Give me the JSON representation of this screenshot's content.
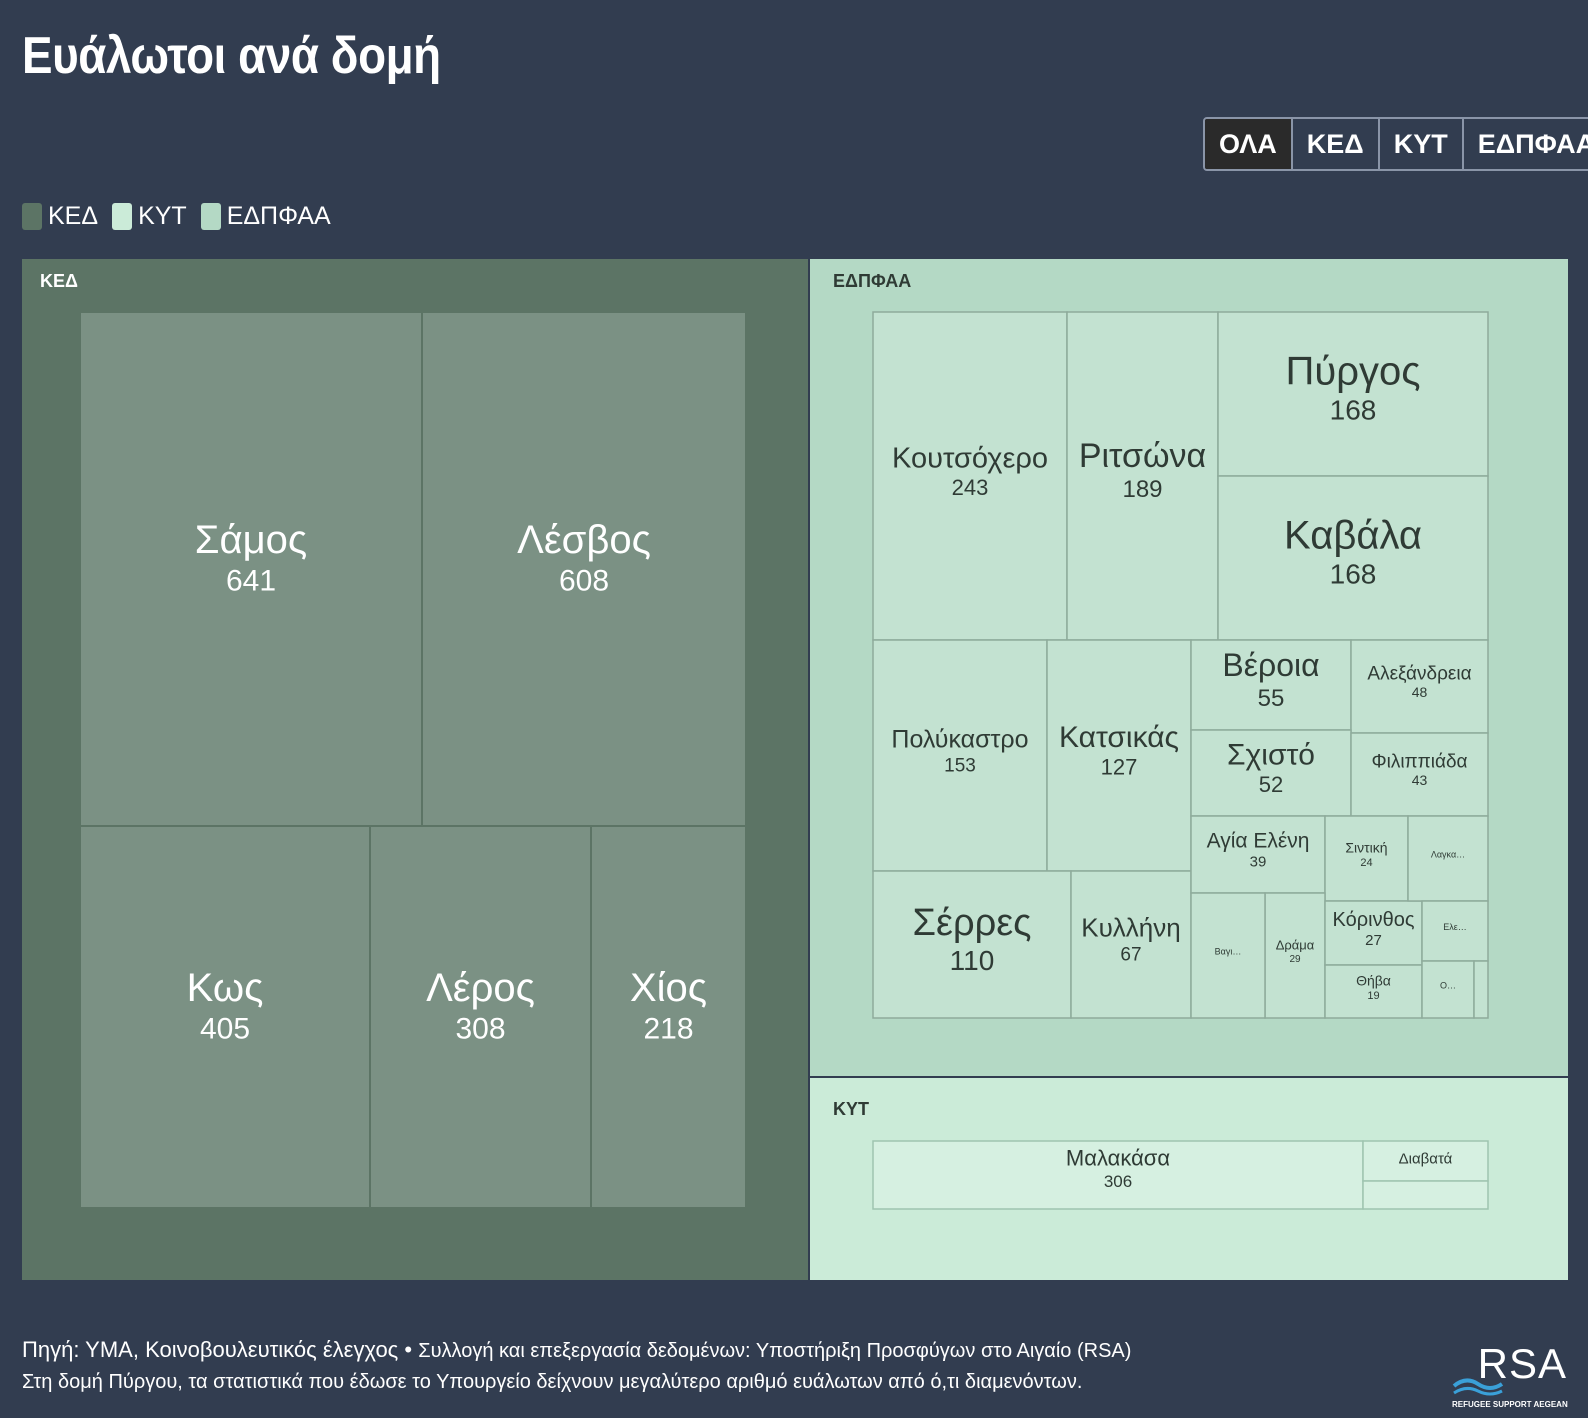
{
  "page": {
    "title": "Ευάλωτοι ανά δομή",
    "tabs": [
      "ΟΛΑ",
      "ΚΕΔ",
      "ΚΥΤ",
      "ΕΔΠΦΑΑ"
    ],
    "active_tab": "ΟΛΑ",
    "legend": [
      {
        "label": "ΚΕΔ",
        "color": "#5c7465"
      },
      {
        "label": "ΚΥΤ",
        "color": "#cbebd8"
      },
      {
        "label": "ΕΔΠΦΑΑ",
        "color": "#b4d9c5"
      }
    ],
    "source": "Πηγή: ΥΜΑ, Κοινοβουλευτικός έλεγχος",
    "source_separator": "•",
    "collection": "Συλλογή και επεξεργασία δεδομένων: Υποστήριξη Προσφύγων στο Αιγαίο (RSA)",
    "note": "Στη δομή Πύργου, τα στατιστικά που έδωσε το Υπουργείο δείχνουν μεγαλύτερο αριθμό ευάλωτων από ό,τι διαμενόντων.",
    "logo_text": "RSA",
    "logo_sub": "REFUGEE SUPPORT AEGEAN"
  },
  "chart_data": {
    "type": "treemap",
    "title": "Ευάλωτοι ανά δομή",
    "groups": [
      {
        "name": "ΚΕΔ",
        "color": "#5c7465",
        "cell_color": "#7b9184",
        "items": [
          {
            "label": "Σάμος",
            "value": 641
          },
          {
            "label": "Λέσβος",
            "value": 608
          },
          {
            "label": "Κως",
            "value": 405
          },
          {
            "label": "Λέρος",
            "value": 308
          },
          {
            "label": "Χίος",
            "value": 218
          }
        ]
      },
      {
        "name": "ΕΔΠΦΑΑ",
        "color": "#b4d9c5",
        "cell_color": "#c3e2d1",
        "items": [
          {
            "label": "Κουτσόχερο",
            "value": 243
          },
          {
            "label": "Ριτσώνα",
            "value": 189
          },
          {
            "label": "Πύργος",
            "value": 168
          },
          {
            "label": "Καβάλα",
            "value": 168
          },
          {
            "label": "Πολύκαστρο",
            "value": 153
          },
          {
            "label": "Κατσικάς",
            "value": 127
          },
          {
            "label": "Σέρρες",
            "value": 110
          },
          {
            "label": "Κυλλήνη",
            "value": 67
          },
          {
            "label": "Βέροια",
            "value": 55
          },
          {
            "label": "Σχιστό",
            "value": 52
          },
          {
            "label": "Αλεξάνδρεια",
            "value": 48
          },
          {
            "label": "Φιλιππιάδα",
            "value": 43
          },
          {
            "label": "Αγία Ελένη",
            "value": 39
          },
          {
            "label": "Δράμα",
            "value": 29
          },
          {
            "label": "Κόρινθος",
            "value": 27
          },
          {
            "label": "Σιντική",
            "value": 24
          },
          {
            "label": "Θήβα",
            "value": 19
          },
          {
            "label": "Βαγι…",
            "value": null
          },
          {
            "label": "Λαγκα…",
            "value": null
          },
          {
            "label": "Ελε…",
            "value": null
          },
          {
            "label": "Ο…",
            "value": null
          }
        ]
      },
      {
        "name": "ΚΥΤ",
        "color": "#cbebd8",
        "cell_color": "#d6f0e1",
        "items": [
          {
            "label": "Μαλακάσα",
            "value": 306
          },
          {
            "label": "Διαβατά",
            "value": null
          }
        ]
      }
    ]
  }
}
